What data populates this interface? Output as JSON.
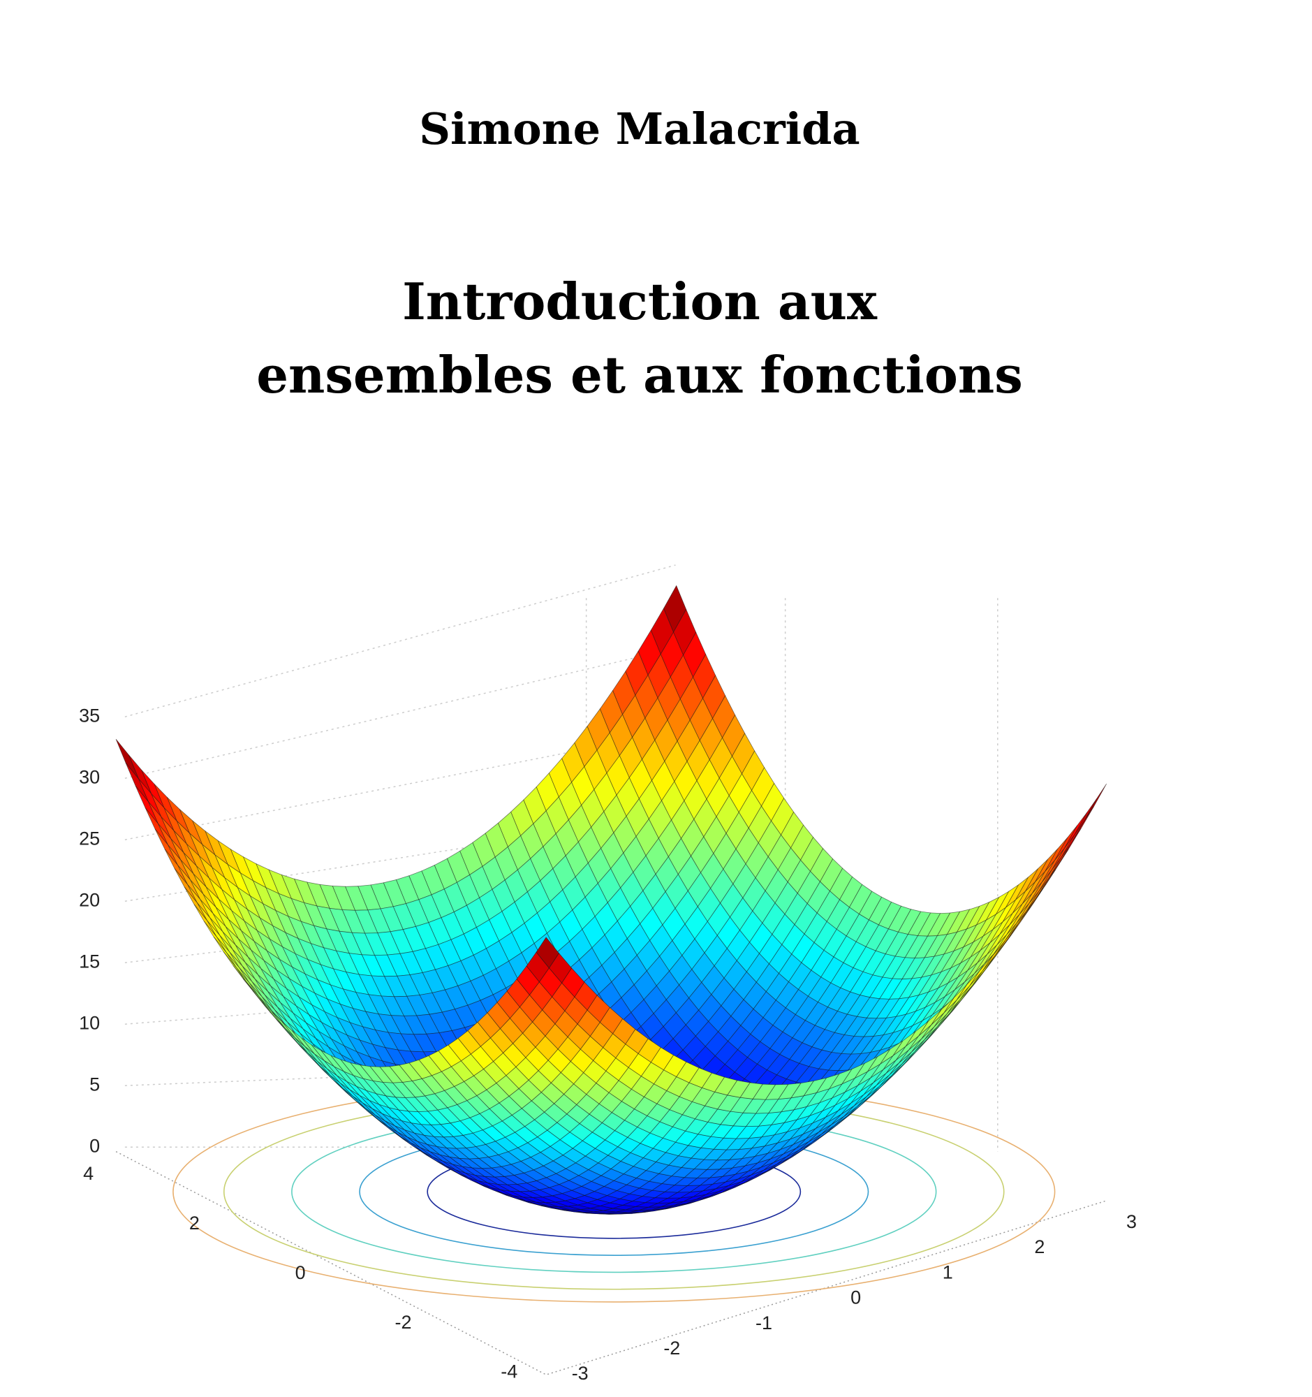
{
  "author": "Simone Malacrida",
  "title": [
    "Introduction aux",
    "ensembles et aux fonctions"
  ],
  "figure": {
    "z_ticks": [
      35,
      30,
      25,
      20,
      15,
      10,
      5,
      0
    ],
    "y_ticks": [
      4,
      2,
      0,
      -2,
      -4
    ],
    "x_ticks": [
      -3,
      -2,
      -1,
      0,
      1,
      2,
      3
    ]
  }
}
